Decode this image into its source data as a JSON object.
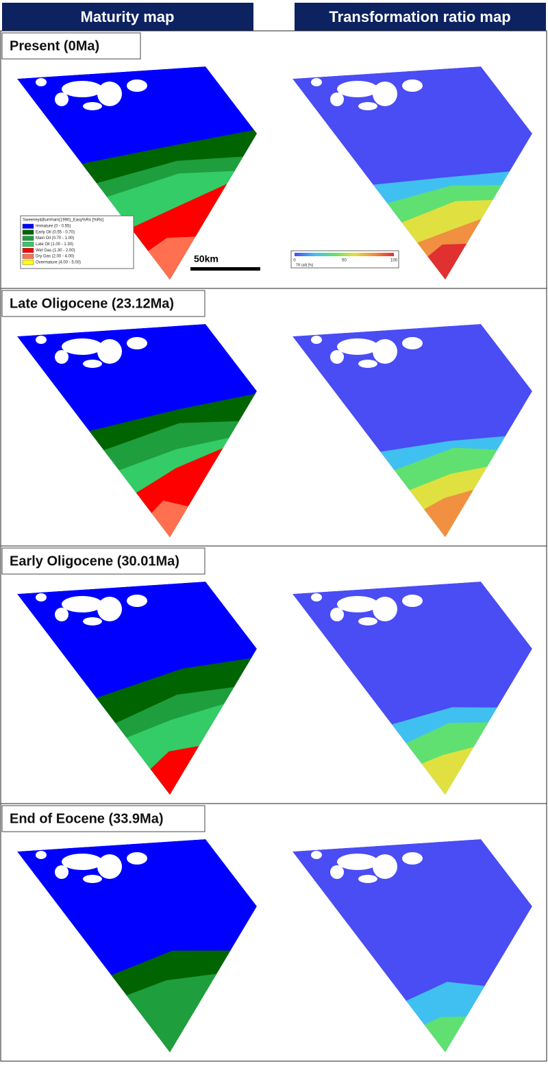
{
  "headers": [
    "Maturity map",
    "Transformation ratio map"
  ],
  "rows": [
    {
      "label": "Present (0Ma)"
    },
    {
      "label": "Late Oligocene (23.12Ma)"
    },
    {
      "label": "Early Oligocene (30.01Ma)"
    },
    {
      "label": "End of Eocene (33.9Ma)"
    }
  ],
  "legend": {
    "title": "Sweeney&Burnham(1990)_Easy%Ro [%Ro]",
    "items": [
      {
        "label": "Immature (0 - 0.55)",
        "color": "#0000ff"
      },
      {
        "label": "Early Oil (0.55 - 0.70)",
        "color": "#006400"
      },
      {
        "label": "Main Oil (0.70 - 1.00)",
        "color": "#1e9e3c"
      },
      {
        "label": "Late Oil (1.00 - 1.30)",
        "color": "#33cc66"
      },
      {
        "label": "Wet Gas (1.30 - 2.00)",
        "color": "#ff0000"
      },
      {
        "label": "Dry Gas (2.00 - 4.00)",
        "color": "#ff7050"
      },
      {
        "label": "Overmature (4.00 - 5.00)",
        "color": "#ffff00"
      }
    ]
  },
  "colorbar": {
    "label": "TR (all) [%]",
    "ticks": [
      "0",
      "50",
      "100"
    ]
  },
  "scale_bar": "50km"
}
